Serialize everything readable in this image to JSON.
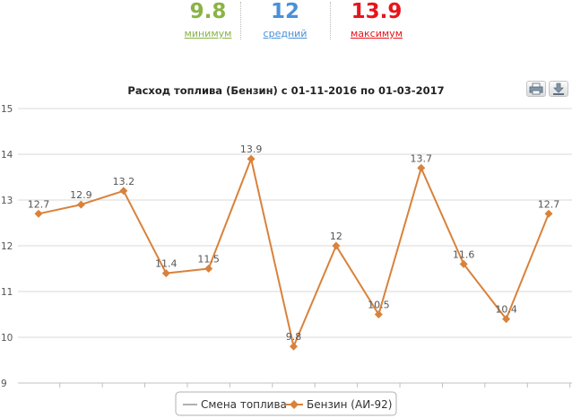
{
  "stats": {
    "min": {
      "value": "9.8",
      "label": "минимум",
      "color": "#8ab347"
    },
    "avg": {
      "value": "12",
      "label": "средний",
      "color": "#4a90d9"
    },
    "max": {
      "value": "13.9",
      "label": "максимум",
      "color": "#e8141c"
    }
  },
  "toolbar": {
    "print_icon": "printer-icon",
    "download_icon": "download-icon"
  },
  "chart_data": {
    "type": "line",
    "title": "Расход топлива (Бензин) с 01-11-2016 по 01-03-2017",
    "xlabel": "",
    "ylabel": "",
    "ylim": [
      9,
      15
    ],
    "yticks": [
      9,
      10,
      11,
      12,
      13,
      14,
      15
    ],
    "grid": true,
    "legend_position": "bottom",
    "series": [
      {
        "name": "Смена топлива",
        "color": "#b0b0b0",
        "values": []
      },
      {
        "name": "Бензин (АИ-92)",
        "color": "#d9823b",
        "values": [
          12.7,
          12.9,
          13.2,
          11.4,
          11.5,
          13.9,
          9.8,
          12,
          10.5,
          13.7,
          11.6,
          10.4,
          12.7
        ],
        "labels": [
          "12.7",
          "12.9",
          "13.2",
          "11.4",
          "11.5",
          "13.9",
          "9.8",
          "12",
          "10.5",
          "13.7",
          "11.6",
          "10.4",
          "12.7"
        ]
      }
    ]
  }
}
